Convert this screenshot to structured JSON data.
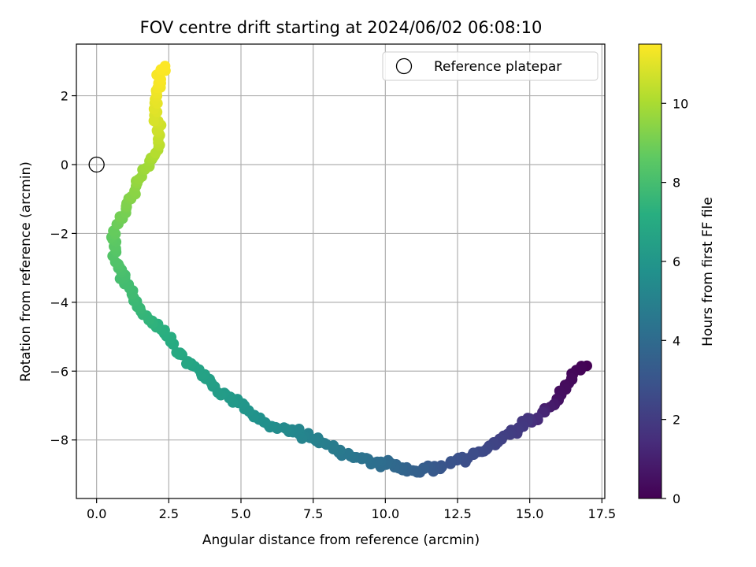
{
  "chart_data": {
    "type": "scatter",
    "title": "FOV centre drift starting at 2024/06/02 06:08:10",
    "xlabel": "Angular distance from reference (arcmin)",
    "ylabel": "Rotation from reference (arcmin)",
    "xlim": [
      -0.7,
      17.6
    ],
    "ylim": [
      -9.7,
      3.5
    ],
    "xticks": [
      0.0,
      2.5,
      5.0,
      7.5,
      10.0,
      12.5,
      15.0,
      17.5
    ],
    "xtick_labels": [
      "0.0",
      "2.5",
      "5.0",
      "7.5",
      "10.0",
      "12.5",
      "15.0",
      "17.5"
    ],
    "yticks": [
      -8,
      -6,
      -4,
      -2,
      0,
      2
    ],
    "ytick_labels": [
      "−8",
      "−6",
      "−4",
      "−2",
      "0",
      "2"
    ],
    "grid": true,
    "legend": {
      "placement": "top-right",
      "entries": [
        "Reference platepar"
      ]
    },
    "reference_point": {
      "name": "Reference platepar",
      "x": 0.0,
      "y": 0.0
    },
    "colorbar": {
      "label": "Hours from first FF file",
      "colormap": "viridis",
      "range": [
        0,
        11.5
      ],
      "ticks": [
        0,
        2,
        4,
        6,
        8,
        10
      ],
      "tick_labels": [
        "0",
        "2",
        "4",
        "6",
        "8",
        "10"
      ]
    },
    "anchors": [
      {
        "x": 16.9,
        "y": -5.8,
        "t": 0.0
      },
      {
        "x": 16.5,
        "y": -6.1,
        "t": 0.2
      },
      {
        "x": 16.0,
        "y": -6.8,
        "t": 0.5
      },
      {
        "x": 15.6,
        "y": -7.1,
        "t": 0.9
      },
      {
        "x": 15.3,
        "y": -7.3,
        "t": 1.3
      },
      {
        "x": 14.9,
        "y": -7.5,
        "t": 1.8
      },
      {
        "x": 14.2,
        "y": -7.9,
        "t": 2.1
      },
      {
        "x": 13.1,
        "y": -8.4,
        "t": 2.6
      },
      {
        "x": 12.0,
        "y": -8.8,
        "t": 3.0
      },
      {
        "x": 11.0,
        "y": -8.9,
        "t": 3.5
      },
      {
        "x": 10.0,
        "y": -8.7,
        "t": 4.0
      },
      {
        "x": 8.5,
        "y": -8.4,
        "t": 4.6
      },
      {
        "x": 7.5,
        "y": -7.9,
        "t": 5.0
      },
      {
        "x": 6.0,
        "y": -7.6,
        "t": 5.6
      },
      {
        "x": 5.0,
        "y": -7.0,
        "t": 6.0
      },
      {
        "x": 4.0,
        "y": -6.4,
        "t": 6.4
      },
      {
        "x": 3.0,
        "y": -5.6,
        "t": 6.8
      },
      {
        "x": 2.5,
        "y": -5.0,
        "t": 7.1
      },
      {
        "x": 1.5,
        "y": -4.2,
        "t": 7.6
      },
      {
        "x": 0.9,
        "y": -3.3,
        "t": 8.0
      },
      {
        "x": 0.6,
        "y": -2.5,
        "t": 8.4
      },
      {
        "x": 0.6,
        "y": -1.8,
        "t": 8.8
      },
      {
        "x": 1.1,
        "y": -1.2,
        "t": 9.2
      },
      {
        "x": 1.5,
        "y": -0.3,
        "t": 9.7
      },
      {
        "x": 2.0,
        "y": 0.2,
        "t": 10.0
      },
      {
        "x": 2.2,
        "y": 0.8,
        "t": 10.5
      },
      {
        "x": 2.0,
        "y": 1.5,
        "t": 10.9
      },
      {
        "x": 2.1,
        "y": 2.2,
        "t": 11.3
      },
      {
        "x": 2.3,
        "y": 2.9,
        "t": 11.5
      }
    ]
  }
}
